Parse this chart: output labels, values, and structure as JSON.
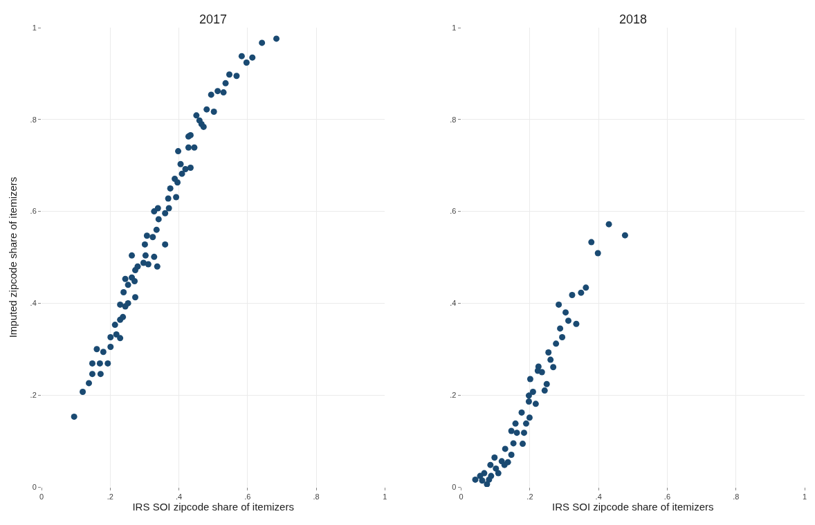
{
  "chart_data": [
    {
      "type": "scatter",
      "title": "2017",
      "xlabel": "IRS SOI zipcode share of itemizers",
      "ylabel": "Imputed zipcode share of itemizers",
      "marker": "circle",
      "grid": true,
      "xlim": [
        0,
        1
      ],
      "ylim": [
        0,
        1
      ],
      "xticks": [
        0,
        {
          "value": 0.2,
          "label": ".2"
        },
        {
          "value": 0.4,
          "label": ".4"
        },
        {
          "value": 0.6,
          "label": ".6"
        },
        {
          "value": 0.8,
          "label": ".8"
        },
        1
      ],
      "yticks": [
        0,
        {
          "value": 0.2,
          "label": ".2"
        },
        {
          "value": 0.4,
          "label": ".4"
        },
        {
          "value": 0.6,
          "label": ".6"
        },
        {
          "value": 0.8,
          "label": ".8"
        },
        1
      ],
      "series": [
        {
          "color": "#1a4a72",
          "x": [
            0.095,
            0.12,
            0.138,
            0.148,
            0.17,
            0.148,
            0.172,
            0.193,
            0.161,
            0.18,
            0.201,
            0.201,
            0.218,
            0.229,
            0.214,
            0.229,
            0.237,
            0.244,
            0.229,
            0.252,
            0.239,
            0.273,
            0.252,
            0.263,
            0.244,
            0.273,
            0.28,
            0.297,
            0.263,
            0.303,
            0.271,
            0.311,
            0.337,
            0.328,
            0.301,
            0.324,
            0.36,
            0.307,
            0.335,
            0.341,
            0.36,
            0.328,
            0.371,
            0.369,
            0.339,
            0.392,
            0.375,
            0.396,
            0.409,
            0.388,
            0.419,
            0.434,
            0.405,
            0.398,
            0.428,
            0.445,
            0.434,
            0.428,
            0.451,
            0.466,
            0.472,
            0.481,
            0.502,
            0.494,
            0.513,
            0.53,
            0.536,
            0.547,
            0.568,
            0.583,
            0.597,
            0.614,
            0.642,
            0.684,
            0.46
          ],
          "values": [
            0.153,
            0.207,
            0.226,
            0.269,
            0.269,
            0.246,
            0.246,
            0.269,
            0.3,
            0.294,
            0.305,
            0.326,
            0.332,
            0.324,
            0.353,
            0.364,
            0.37,
            0.393,
            0.397,
            0.4,
            0.424,
            0.413,
            0.44,
            0.456,
            0.453,
            0.472,
            0.48,
            0.488,
            0.504,
            0.504,
            0.448,
            0.485,
            0.48,
            0.501,
            0.528,
            0.544,
            0.528,
            0.547,
            0.56,
            0.583,
            0.596,
            0.6,
            0.607,
            0.628,
            0.607,
            0.631,
            0.65,
            0.663,
            0.682,
            0.671,
            0.692,
            0.695,
            0.703,
            0.731,
            0.739,
            0.739,
            0.766,
            0.763,
            0.809,
            0.79,
            0.784,
            0.822,
            0.817,
            0.854,
            0.862,
            0.859,
            0.879,
            0.898,
            0.895,
            0.938,
            0.924,
            0.935,
            0.967,
            0.976,
            0.798
          ]
        }
      ]
    },
    {
      "type": "scatter",
      "title": "2018",
      "xlabel": "IRS SOI zipcode share of itemizers",
      "marker": "circle",
      "grid": true,
      "xlim": [
        0,
        1
      ],
      "ylim": [
        0,
        1
      ],
      "xticks": [
        0,
        {
          "value": 0.2,
          "label": ".2"
        },
        {
          "value": 0.4,
          "label": ".4"
        },
        {
          "value": 0.6,
          "label": ".6"
        },
        {
          "value": 0.8,
          "label": ".8"
        },
        1
      ],
      "yticks": [
        0,
        {
          "value": 0.2,
          "label": ".2"
        },
        {
          "value": 0.4,
          "label": ".4"
        },
        {
          "value": 0.6,
          "label": ".6"
        },
        {
          "value": 0.8,
          "label": ".8"
        },
        1
      ],
      "series": [
        {
          "color": "#1a4a72",
          "x": [
            0.43,
            0.477,
            0.379,
            0.398,
            0.363,
            0.349,
            0.323,
            0.284,
            0.304,
            0.312,
            0.335,
            0.288,
            0.294,
            0.276,
            0.254,
            0.26,
            0.268,
            0.225,
            0.223,
            0.235,
            0.201,
            0.249,
            0.243,
            0.197,
            0.209,
            0.197,
            0.217,
            0.176,
            0.199,
            0.189,
            0.158,
            0.146,
            0.162,
            0.183,
            0.179,
            0.152,
            0.128,
            0.146,
            0.097,
            0.118,
            0.085,
            0.101,
            0.067,
            0.087,
            0.055,
            0.041,
            0.075,
            0.061,
            0.081,
            0.108,
            0.136,
            0.126
          ],
          "values": [
            0.572,
            0.548,
            0.533,
            0.509,
            0.434,
            0.423,
            0.418,
            0.397,
            0.38,
            0.362,
            0.355,
            0.345,
            0.326,
            0.312,
            0.293,
            0.277,
            0.261,
            0.262,
            0.253,
            0.25,
            0.235,
            0.224,
            0.21,
            0.199,
            0.207,
            0.186,
            0.181,
            0.162,
            0.151,
            0.138,
            0.138,
            0.122,
            0.118,
            0.118,
            0.094,
            0.095,
            0.083,
            0.07,
            0.064,
            0.056,
            0.048,
            0.04,
            0.03,
            0.024,
            0.024,
            0.016,
            0.006,
            0.014,
            0.016,
            0.03,
            0.054,
            0.048
          ]
        }
      ]
    }
  ]
}
